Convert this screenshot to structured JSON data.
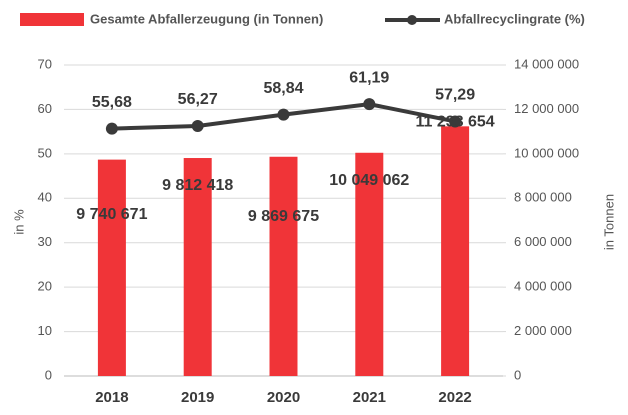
{
  "chart_data": {
    "type": "combo",
    "categories": [
      "2018",
      "2019",
      "2020",
      "2021",
      "2022"
    ],
    "series": [
      {
        "name": "Gesamte Abfallerzeugung (in Tonnen)",
        "type": "bar",
        "axis": "y2",
        "color": "#f03438",
        "values": [
          9740671,
          9812418,
          9869675,
          10049062,
          11238654
        ],
        "value_labels": [
          "9 740 671",
          "9 812 418",
          "9 869 675",
          "10 049 062",
          "11 238 654"
        ]
      },
      {
        "name": "Abfallrecyclingrate (%)",
        "type": "line",
        "axis": "y",
        "color": "#3a3a3a",
        "values": [
          55.68,
          56.27,
          58.84,
          61.19,
          57.29
        ],
        "value_labels": [
          "55,68",
          "56,27",
          "58,84",
          "61,19",
          "57,29"
        ]
      }
    ],
    "ylabel": "in %",
    "y2label": "in Tonnen",
    "ylim": [
      0,
      70
    ],
    "yticks": [
      0,
      10,
      20,
      30,
      40,
      50,
      60,
      70
    ],
    "y2lim": [
      0,
      14000000
    ],
    "y2ticks": [
      {
        "value": 0,
        "label": "0"
      },
      {
        "value": 2000000,
        "label": "2 000 000"
      },
      {
        "value": 4000000,
        "label": "4 000 000"
      },
      {
        "value": 6000000,
        "label": "6 000 000"
      },
      {
        "value": 8000000,
        "label": "8 000 000"
      },
      {
        "value": 10000000,
        "label": "10 000 000"
      },
      {
        "value": 12000000,
        "label": "12 000 000"
      },
      {
        "value": 14000000,
        "label": "14 000 000"
      }
    ],
    "grid": true,
    "legend": "top"
  }
}
